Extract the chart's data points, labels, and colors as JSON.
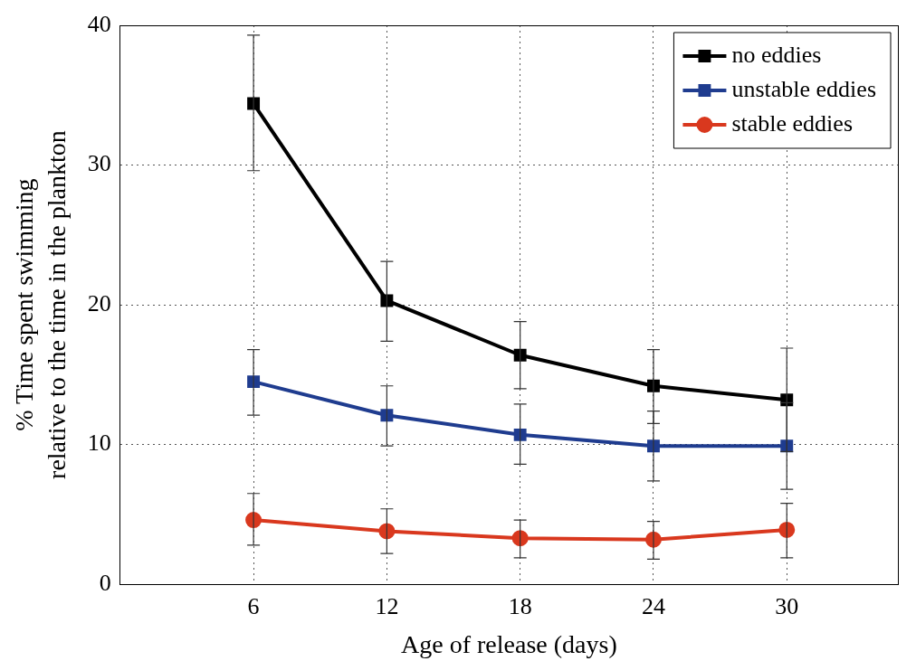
{
  "chart_data": {
    "type": "line",
    "xlabel": "Age of release (days)",
    "ylabel": "% Time spent swimming\nrelative to the time in the plankton",
    "x": [
      6,
      12,
      18,
      24,
      30
    ],
    "series": [
      {
        "name": "no eddies",
        "color": "#000000",
        "marker": "square",
        "values": [
          34.4,
          20.3,
          16.4,
          14.2,
          13.2
        ],
        "errors": [
          [
            29.6,
            39.3
          ],
          [
            17.4,
            23.1
          ],
          [
            14.0,
            18.8
          ],
          [
            11.5,
            16.8
          ],
          [
            9.5,
            16.9
          ]
        ]
      },
      {
        "name": "unstable eddies",
        "color": "#1f3c8f",
        "marker": "square",
        "values": [
          14.5,
          12.1,
          10.7,
          9.9,
          9.9
        ],
        "errors": [
          [
            12.1,
            16.8
          ],
          [
            9.9,
            14.2
          ],
          [
            8.6,
            12.9
          ],
          [
            7.4,
            12.4
          ],
          [
            6.8,
            13.0
          ]
        ]
      },
      {
        "name": "stable eddies",
        "color": "#d9381e",
        "marker": "circle",
        "values": [
          4.6,
          3.8,
          3.3,
          3.2,
          3.9
        ],
        "errors": [
          [
            2.8,
            6.5
          ],
          [
            2.2,
            5.4
          ],
          [
            1.9,
            4.6
          ],
          [
            1.8,
            4.5
          ],
          [
            1.9,
            5.8
          ]
        ]
      }
    ],
    "xlim": [
      0,
      35
    ],
    "xticks": [
      6,
      12,
      18,
      24,
      30
    ],
    "ylim": [
      0,
      40
    ],
    "yticks": [
      0,
      10,
      20,
      30,
      40
    ],
    "grid": true,
    "legend": "top right",
    "line_style": "solid"
  }
}
